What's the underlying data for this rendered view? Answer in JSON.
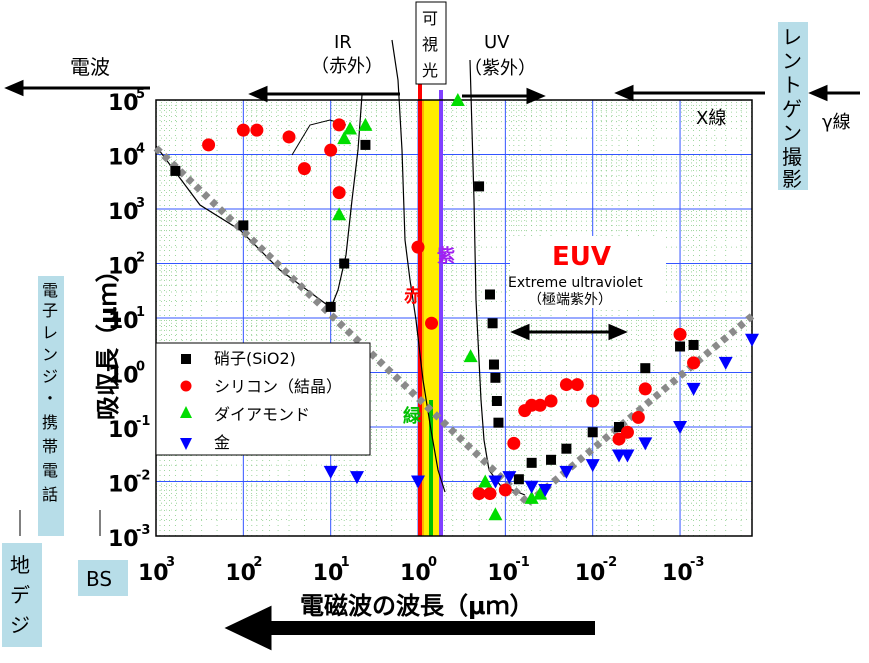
{
  "chart_data": {
    "type": "scatter",
    "xlabel": "電磁波の波長（μｍ）",
    "ylabel": "吸収長（μｍ）",
    "x_scale": "log-reversed",
    "y_scale": "log",
    "xlim": [
      1000,
      0.00015
    ],
    "ylim": [
      0.001,
      100000
    ],
    "x_ticks": [
      {
        "value": 1000,
        "base": "10",
        "exp": "3"
      },
      {
        "value": 100,
        "base": "10",
        "exp": "2"
      },
      {
        "value": 10,
        "base": "10",
        "exp": "1"
      },
      {
        "value": 1,
        "base": "10",
        "exp": "0"
      },
      {
        "value": 0.1,
        "base": "10",
        "exp": "-1"
      },
      {
        "value": 0.01,
        "base": "10",
        "exp": "-2"
      },
      {
        "value": 0.001,
        "base": "10",
        "exp": "-3"
      }
    ],
    "y_ticks": [
      {
        "value": 100000,
        "base": "10",
        "exp": "5"
      },
      {
        "value": 10000,
        "base": "10",
        "exp": "4"
      },
      {
        "value": 1000,
        "base": "10",
        "exp": "3"
      },
      {
        "value": 100,
        "base": "10",
        "exp": "2"
      },
      {
        "value": 10,
        "base": "10",
        "exp": "1"
      },
      {
        "value": 1,
        "base": "10",
        "exp": "0"
      },
      {
        "value": 0.1,
        "base": "10",
        "exp": "-1"
      },
      {
        "value": 0.01,
        "base": "10",
        "exp": "-2"
      },
      {
        "value": 0.001,
        "base": "10",
        "exp": "-3"
      }
    ],
    "grid": true,
    "legend_position": "left",
    "series": [
      {
        "name": "硝子(SiO2)",
        "marker": "square",
        "color": "#000000",
        "points": [
          [
            600,
            5000
          ],
          [
            100,
            500
          ],
          [
            10,
            16
          ],
          [
            7,
            100
          ],
          [
            4,
            15000
          ],
          [
            0.2,
            2600
          ],
          [
            0.15,
            27
          ],
          [
            0.14,
            8
          ],
          [
            0.135,
            1.4
          ],
          [
            0.13,
            0.8
          ],
          [
            0.125,
            0.3
          ],
          [
            0.12,
            0.12
          ],
          [
            0.07,
            0.011
          ],
          [
            0.05,
            0.022
          ],
          [
            0.03,
            0.025
          ],
          [
            0.02,
            0.04
          ],
          [
            0.01,
            0.08
          ],
          [
            0.005,
            0.1
          ],
          [
            0.0025,
            1.2
          ],
          [
            0.001,
            3
          ],
          [
            0.0007,
            3.2
          ]
        ]
      },
      {
        "name": "シリコン（結晶）",
        "marker": "circle",
        "color": "#ff0000",
        "points": [
          [
            250,
            15000
          ],
          [
            100,
            28000
          ],
          [
            70,
            28000
          ],
          [
            30,
            21000
          ],
          [
            20,
            5500
          ],
          [
            10,
            12000
          ],
          [
            8,
            35000
          ],
          [
            8,
            2000
          ],
          [
            1,
            200
          ],
          [
            0.7,
            8
          ],
          [
            0.2,
            0.006
          ],
          [
            0.15,
            0.006
          ],
          [
            0.1,
            0.007
          ],
          [
            0.08,
            0.05
          ],
          [
            0.06,
            0.2
          ],
          [
            0.05,
            0.25
          ],
          [
            0.04,
            0.25
          ],
          [
            0.03,
            0.3
          ],
          [
            0.02,
            0.6
          ],
          [
            0.015,
            0.6
          ],
          [
            0.01,
            0.3
          ],
          [
            0.005,
            0.06
          ],
          [
            0.004,
            0.08
          ],
          [
            0.003,
            0.15
          ],
          [
            0.0025,
            0.5
          ],
          [
            0.001,
            5
          ],
          [
            0.0007,
            1.5
          ]
        ]
      },
      {
        "name": "ダイアモンド",
        "marker": "triangle-up",
        "color": "#00dd00",
        "points": [
          [
            7,
            20000
          ],
          [
            6,
            30000
          ],
          [
            4,
            35000
          ],
          [
            8,
            800
          ],
          [
            0.35,
            100000
          ],
          [
            0.25,
            2
          ],
          [
            0.17,
            0.01
          ],
          [
            0.13,
            0.0025
          ],
          [
            0.05,
            0.005
          ],
          [
            0.04,
            0.006
          ]
        ]
      },
      {
        "name": "金",
        "marker": "triangle-down",
        "color": "#0000ff",
        "points": [
          [
            10,
            0.015
          ],
          [
            5,
            0.012
          ],
          [
            1,
            0.01
          ],
          [
            0.13,
            0.01
          ],
          [
            0.09,
            0.012
          ],
          [
            0.05,
            0.008
          ],
          [
            0.035,
            0.007
          ],
          [
            0.02,
            0.015
          ],
          [
            0.01,
            0.02
          ],
          [
            0.005,
            0.03
          ],
          [
            0.004,
            0.03
          ],
          [
            0.0025,
            0.05
          ],
          [
            0.001,
            0.1
          ],
          [
            0.0007,
            0.5
          ],
          [
            0.0003,
            1.5
          ],
          [
            0.00015,
            4
          ]
        ]
      }
    ],
    "bands": [
      {
        "label": "電波",
        "direction": "left"
      },
      {
        "label": "IR\n（赤外）",
        "direction": "left"
      },
      {
        "label": "可\n視\n光"
      },
      {
        "label": "UV\n（紫外）",
        "direction": "right"
      },
      {
        "label": "X線",
        "direction": "right"
      },
      {
        "label": "γ線"
      }
    ],
    "annotations": {
      "xray_photo": "レントゲン撮影",
      "microwave_phone": "電子レンジ・携帯電話",
      "tv": "地デジ",
      "bs": "BS",
      "euv": "EUV",
      "euv_en": "Extreme ultraviolet",
      "euv_ja": "（極端紫外）",
      "red": "赤",
      "green": "緑",
      "violet": "紫"
    }
  }
}
